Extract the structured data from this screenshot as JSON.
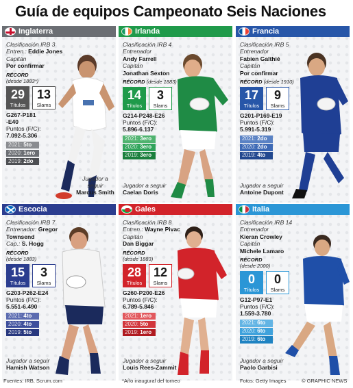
{
  "title": "Guía de equipos Campeonato Seis Naciones",
  "labels": {
    "record": "RÉCORD",
    "record_since_prefix": "(desde ",
    "titulos": "Títulos",
    "slams": "Slams",
    "puntos": "Puntos (F/C):",
    "jugador": "Jugador a seguir"
  },
  "teams": [
    {
      "name": "Inglaterra",
      "color": "#6b6e73",
      "ranking": "Clasificación IRB 3",
      "coach_label": "Entren.:",
      "coach": "Eddie Jones",
      "captain_label": "Capitán",
      "captain": "Por confirmar",
      "record_since": "(desde 1883*)",
      "titles": "29",
      "slams": "13",
      "score": "G267-P181",
      "score2": "-E40",
      "points": "7.092-5.306",
      "history": [
        {
          "year": "2021:",
          "pos": "5to"
        },
        {
          "year": "2020:",
          "pos": "1ero"
        },
        {
          "year": "2019:",
          "pos": "2do"
        }
      ],
      "player_label": "Jugador a seguir",
      "player": "Marcus Smith"
    },
    {
      "name": "Irlanda",
      "color": "#1f9a4a",
      "ranking": "Clasificación IRB 4",
      "coach_label": "Entrenador",
      "coach": "Andy Farrell",
      "captain_label": "Capitán",
      "captain": "Jonathan Sexton",
      "record_since": "(desde 1883)",
      "titles": "14",
      "slams": "3",
      "score": "G214-P248-E26",
      "score2": "",
      "points": "5.896-6.137",
      "history": [
        {
          "year": "2021:",
          "pos": "3ero"
        },
        {
          "year": "2020:",
          "pos": "3ero"
        },
        {
          "year": "2019:",
          "pos": "3ero"
        }
      ],
      "player_label": "Jugador a seguir",
      "player": "Caelan Doris"
    },
    {
      "name": "Francia",
      "color": "#2756a8",
      "ranking": "Clasificación IRB 5",
      "coach_label": "Entrenador",
      "coach": "Fabien Galthié",
      "captain_label": "Capitán",
      "captain": "Por confirmar",
      "record_since": "(desde 1910)",
      "titles": "17",
      "slams": "9",
      "score": "G201-P169-E19",
      "score2": "",
      "points": "5.991-5.319",
      "history": [
        {
          "year": "2021:",
          "pos": "2do"
        },
        {
          "year": "2020:",
          "pos": "2do"
        },
        {
          "year": "2019:",
          "pos": "4to"
        }
      ],
      "player_label": "Jugador a seguir",
      "player": "Antoine Dupont"
    },
    {
      "name": "Escocia",
      "color": "#2b3d8f",
      "ranking": "Clasificación IRB 7",
      "coach_label": "Entrenador:",
      "coach": "Gregor Townsend",
      "captain_label": "Cap.:",
      "captain": "S. Hogg",
      "record_since": "(desde 1883)",
      "titles": "15",
      "slams": "3",
      "score": "G203-P262-E24",
      "score2": "",
      "points": "5.551-6.490",
      "history": [
        {
          "year": "2021:",
          "pos": "4to"
        },
        {
          "year": "2020:",
          "pos": "4to"
        },
        {
          "year": "2019:",
          "pos": "5to"
        }
      ],
      "player_label": "Jugador a seguir",
      "player": "Hamish Watson"
    },
    {
      "name": "Gales",
      "color": "#d2232a",
      "ranking": "Clasificación IRB 8",
      "coach_label": "Entren.:",
      "coach": "Wayne Pivac",
      "captain_label": "Capitán",
      "captain": "Dan Biggar",
      "record_since": "(desde 1883)",
      "titles": "28",
      "slams": "12",
      "score": "G260-P200-E26",
      "score2": "",
      "points": "6.789-5.846",
      "history": [
        {
          "year": "2021:",
          "pos": "1ero"
        },
        {
          "year": "2020:",
          "pos": "5to"
        },
        {
          "year": "2019:",
          "pos": "1ero"
        }
      ],
      "player_label": "Jugador a seguir",
      "player": "Louis Rees-Zammit"
    },
    {
      "name": "Italia",
      "color": "#2b96d6",
      "ranking": "Clasificación IRB 14",
      "coach_label": "Entrenador",
      "coach": "Kieran Crowley",
      "captain_label": "Capitán",
      "captain": "Michele Lamaro",
      "record_since": "(desde 2000)",
      "titles": "0",
      "slams": "0",
      "score": "G12-P97-E1",
      "score2": "",
      "points": "1.559-3.780",
      "history": [
        {
          "year": "2021:",
          "pos": "6to"
        },
        {
          "year": "2020:",
          "pos": "6to"
        },
        {
          "year": "2019:",
          "pos": "6to"
        }
      ],
      "player_label": "Jugador a seguir",
      "player": "Paolo Garbisi"
    }
  ],
  "footer": {
    "sources": "Fuentes: IRB, Scrum.com",
    "note": "*Año inaugural del torneo",
    "photos": "Fotos: Getty Images",
    "credit": "© GRAPHIC NEWS"
  }
}
